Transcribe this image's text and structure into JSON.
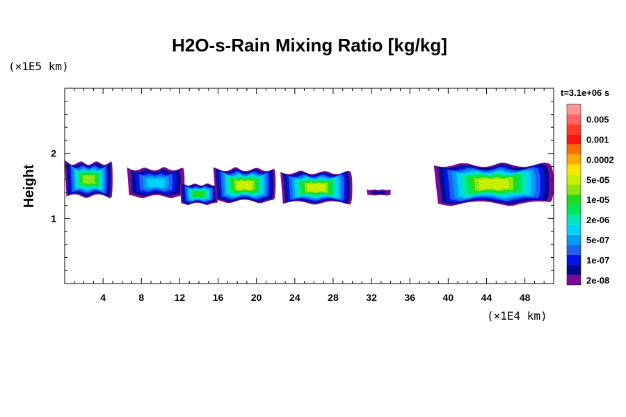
{
  "chart_data": {
    "type": "heatmap",
    "title": "H2O-s-Rain Mixing Ratio [kg/kg]",
    "ylabel": "Height",
    "xlabel": "",
    "x_unit": "(×1E4 km)",
    "y_unit": "(×1E5 km)",
    "time_label": "t=3.1e+06 s",
    "xlim": [
      0,
      51
    ],
    "ylim": [
      0,
      3
    ],
    "x_ticks": [
      4,
      8,
      12,
      16,
      20,
      24,
      28,
      32,
      36,
      40,
      44,
      48
    ],
    "y_ticks": [
      1,
      2
    ],
    "grid": false,
    "colorbar": {
      "levels": [
        {
          "label": "2e-08",
          "color": "#7a0a96"
        },
        {
          "label": "",
          "color": "#000a8c"
        },
        {
          "label": "1e-07",
          "color": "#0014e6"
        },
        {
          "label": "",
          "color": "#1e5ff0"
        },
        {
          "label": "5e-07",
          "color": "#009cf5"
        },
        {
          "label": "",
          "color": "#00d2ff"
        },
        {
          "label": "2e-06",
          "color": "#00e6b4"
        },
        {
          "label": "",
          "color": "#00e65a"
        },
        {
          "label": "1e-05",
          "color": "#1edc1e"
        },
        {
          "label": "",
          "color": "#8ce614"
        },
        {
          "label": "5e-05",
          "color": "#c8f000"
        },
        {
          "label": "",
          "color": "#ffe600"
        },
        {
          "label": "0.0002",
          "color": "#ffaa00"
        },
        {
          "label": "",
          "color": "#ff6e00"
        },
        {
          "label": "0.001",
          "color": "#ff1414"
        },
        {
          "label": "",
          "color": "#ff3c28"
        },
        {
          "label": "0.005",
          "color": "#ff6464"
        },
        {
          "label": "",
          "color": "#ff9696"
        }
      ]
    },
    "clouds": [
      {
        "x0": 0,
        "x1": 5,
        "base": 1.3,
        "top": 1.9,
        "max_level": 9
      },
      {
        "x0": 6.5,
        "x1": 12.5,
        "base": 1.3,
        "top": 1.8,
        "max_level": 5
      },
      {
        "x0": 12,
        "x1": 16,
        "base": 1.2,
        "top": 1.55,
        "max_level": 8
      },
      {
        "x0": 15.5,
        "x1": 22,
        "base": 1.22,
        "top": 1.8,
        "max_level": 10
      },
      {
        "x0": 22.5,
        "x1": 30,
        "base": 1.2,
        "top": 1.75,
        "max_level": 10
      },
      {
        "x0": 31.5,
        "x1": 34,
        "base": 1.35,
        "top": 1.45,
        "max_level": 1
      },
      {
        "x0": 38.5,
        "x1": 51,
        "base": 1.18,
        "top": 1.88,
        "max_level": 10
      }
    ]
  }
}
